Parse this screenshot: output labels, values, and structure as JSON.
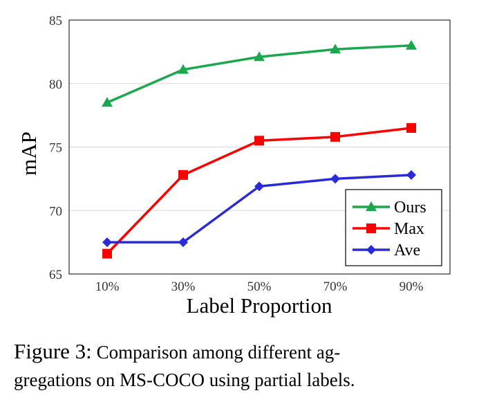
{
  "chart_data": {
    "type": "line",
    "title": "",
    "xlabel": "Label Proportion",
    "ylabel": "mAP",
    "categories": [
      "10%",
      "30%",
      "50%",
      "70%",
      "90%"
    ],
    "ylim": [
      65,
      85
    ],
    "yticks": [
      65,
      70,
      75,
      80,
      85
    ],
    "grid": "horizontal",
    "legend_position": "bottom-right",
    "series": [
      {
        "name": "Ours",
        "color": "#19a84c",
        "marker": "triangle",
        "values": [
          78.5,
          81.1,
          82.1,
          82.7,
          83.0
        ]
      },
      {
        "name": "Max",
        "color": "#ff0000",
        "marker": "square",
        "values": [
          66.6,
          72.8,
          75.5,
          75.8,
          76.5
        ]
      },
      {
        "name": "Ave",
        "color": "#2a2ad8",
        "marker": "diamond",
        "values": [
          67.5,
          67.5,
          71.9,
          72.5,
          72.8
        ]
      }
    ]
  },
  "caption": {
    "label": "Figure 3:",
    "line1": "Comparison among different ag-",
    "line2": "gregations on MS-COCO using partial labels."
  }
}
